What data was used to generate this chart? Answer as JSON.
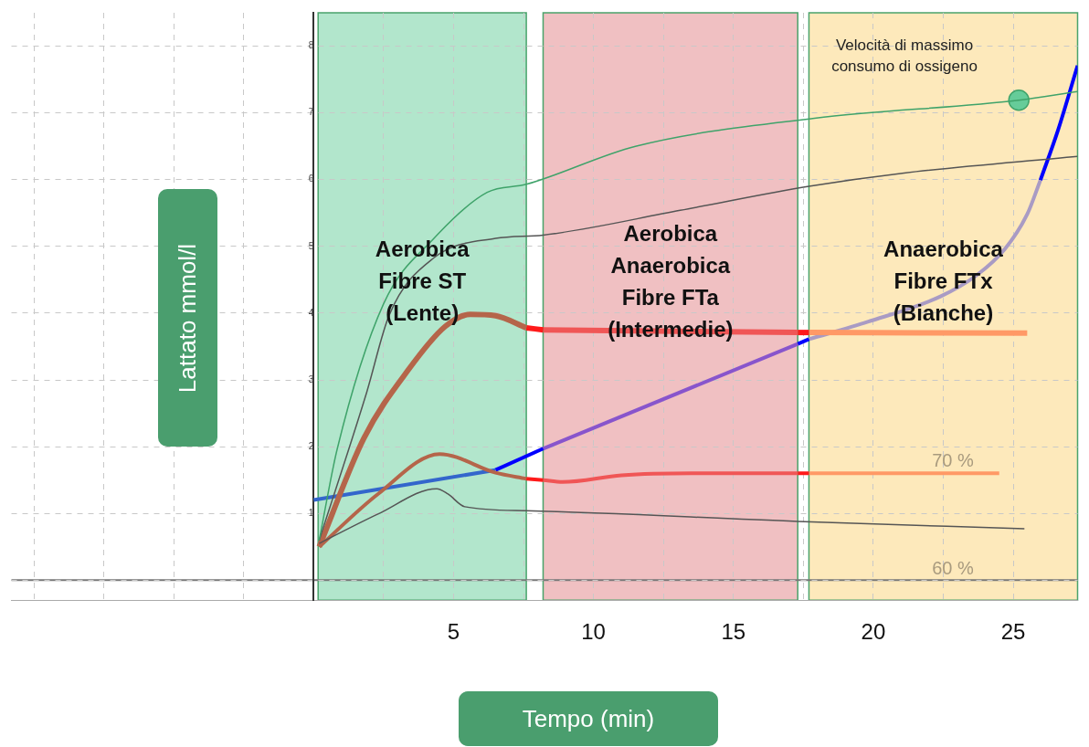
{
  "chart_data": {
    "type": "line",
    "xlabel": "Tempo (min)",
    "ylabel": "Lattato mmol/l",
    "xlim": [
      -10.8,
      27.3
    ],
    "ylim": [
      -0.3,
      8.5
    ],
    "xticks": [
      {
        "value": -10,
        "label": null
      },
      {
        "value": -7.5,
        "label": null
      },
      {
        "value": -5,
        "label": null
      },
      {
        "value": -2.5,
        "label": null
      },
      {
        "value": 0,
        "label": null
      },
      {
        "value": 2.5,
        "label": null
      },
      5,
      {
        "value": 7.5,
        "label": null
      },
      10,
      {
        "value": 12.5,
        "label": null
      },
      15,
      {
        "value": 17.5,
        "label": null
      },
      20,
      {
        "value": 22.5,
        "label": null
      },
      25
    ],
    "yticks": [
      {
        "value": 0,
        "label": null
      },
      1,
      2,
      3,
      4,
      5,
      6,
      7,
      8
    ],
    "grid": true,
    "legend": false,
    "ref_lines": [
      {
        "axis": "y",
        "value": 0,
        "color": "#777777"
      }
    ],
    "bands": [
      {
        "axis": "x",
        "from": 0.16,
        "to": 7.6,
        "label": "Aerobica\nFibre ST\n(Lente)",
        "color": "#b2e6cc"
      },
      {
        "axis": "x",
        "from": 8.2,
        "to": 17.3,
        "label": "Aerobica\nAnaerobica\nFibre FTa\n(Intermedie)",
        "color": "#f0c0c2"
      },
      {
        "axis": "x",
        "from": 17.7,
        "to": 27.3,
        "label": "Anaerobica\nFibre FTx\n(Bianche)",
        "color": "#fde9bb"
      }
    ],
    "annotations": [
      "Velocità di massimo\nconsumo di ossigeno",
      "70 %",
      "60 %"
    ],
    "series": [
      {
        "color": "#3fa36a",
        "x": [
          0.2,
          0.84,
          2.5,
          4.3,
          6.2,
          7.6,
          11.5,
          17.9,
          25.2,
          27.3
        ],
        "values": [
          0.6,
          1.96,
          4.14,
          5.12,
          5.81,
          5.93,
          6.5,
          6.92,
          7.19,
          7.32
        ]
      },
      {
        "color": "#555555",
        "x": [
          0.2,
          1.9,
          2.7,
          4.3,
          6.5,
          8.2,
          13.1,
          17.7,
          21.1,
          27.3
        ],
        "values": [
          0.6,
          2.82,
          3.97,
          4.83,
          5.12,
          5.17,
          5.54,
          5.9,
          6.1,
          6.35
        ]
      },
      {
        "color": "#555555",
        "x": [
          0.2,
          2.3,
          4.4,
          4.8,
          5.4,
          7.6,
          17.3,
          25.4
        ],
        "values": [
          0.55,
          0.99,
          1.37,
          1.29,
          1.1,
          1.04,
          0.88,
          0.77
        ]
      },
      {
        "color": "#b5654a",
        "x": [
          0.2,
          1.8,
          3.4,
          4.7,
          5.6,
          6.5,
          7.6
        ],
        "values": [
          0.5,
          2.13,
          3.16,
          3.8,
          3.98,
          3.96,
          3.78
        ]
      },
      {
        "color": "#ff1a1a",
        "x": [
          7.6,
          8.2
        ],
        "values": [
          3.78,
          3.75
        ]
      },
      {
        "color": "#f05656",
        "x": [
          8.2,
          17.3
        ],
        "values": [
          3.75,
          3.71
        ]
      },
      {
        "color": "#ff1a1a",
        "x": [
          17.3,
          17.7
        ],
        "values": [
          3.71,
          3.71
        ]
      },
      {
        "color": "#ff9966",
        "x": [
          17.7,
          25.5
        ],
        "values": [
          3.71,
          3.7
        ]
      },
      {
        "color": "#b5654a",
        "x": [
          0.2,
          2.3,
          4.5,
          6.5,
          7.6
        ],
        "values": [
          0.5,
          1.29,
          1.89,
          1.61,
          1.52
        ]
      },
      {
        "color": "#ff1a1a",
        "x": [
          7.6,
          8.2
        ],
        "values": [
          1.52,
          1.5
        ]
      },
      {
        "color": "#f05656",
        "x": [
          8.2,
          8.9,
          11,
          13.5,
          17.3
        ],
        "values": [
          1.5,
          1.47,
          1.57,
          1.6,
          1.6
        ]
      },
      {
        "color": "#ff1a1a",
        "x": [
          17.3,
          17.7
        ],
        "values": [
          1.6,
          1.6
        ]
      },
      {
        "color": "#ff9966",
        "x": [
          17.7,
          24.5
        ],
        "values": [
          1.6,
          1.6
        ]
      },
      {
        "color": "#3366cc",
        "x": [
          0,
          6.5
        ],
        "values": [
          1.2,
          1.65
        ]
      },
      {
        "color": "#0000ff",
        "x": [
          6.5,
          8.2
        ],
        "values": [
          1.65,
          1.97
        ]
      },
      {
        "color": "#8855cc",
        "x": [
          8.2,
          17.3
        ],
        "values": [
          1.97,
          3.54
        ]
      },
      {
        "color": "#0000ff",
        "x": [
          17.3,
          17.7
        ],
        "values": [
          3.54,
          3.61
        ]
      },
      {
        "color": "#a99bc4",
        "x": [
          17.7,
          19.8,
          22.4,
          23.7,
          24.7,
          25.5,
          25.97
        ],
        "values": [
          3.61,
          3.87,
          4.25,
          4.57,
          4.96,
          5.48,
          5.99
        ]
      },
      {
        "color": "#0000ff",
        "x": [
          25.97,
          26.6,
          27.3
        ],
        "values": [
          5.99,
          6.74,
          7.71
        ]
      },
      {
        "type": "scatter",
        "color": "#66cc99",
        "x": [
          25.2
        ],
        "values": [
          7.19
        ]
      }
    ]
  }
}
